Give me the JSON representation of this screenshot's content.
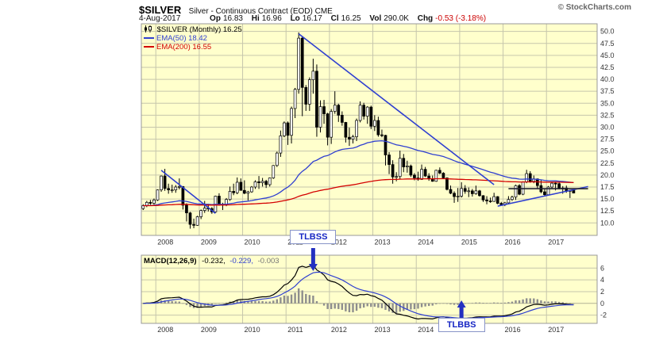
{
  "header": {
    "symbol": "$SILVER",
    "description": "Silver - Continuous Contract (EOD) CME",
    "copyright": "© StockCharts.com",
    "date": "4-Aug-2017",
    "quote": {
      "op_label": "Op",
      "op": "16.83",
      "hi_label": "Hi",
      "hi": "16.96",
      "lo_label": "Lo",
      "lo": "16.17",
      "cl_label": "Cl",
      "cl": "16.25",
      "vol_label": "Vol",
      "vol": "290.0K",
      "chg_label": "Chg",
      "chg": "-0.53 (-3.18%)"
    }
  },
  "legend": {
    "symbol_line": "$SILVER (Monthly) 16.25",
    "ema50": "EMA(50) 18.42",
    "ema200": "EMA(200) 16.55"
  },
  "macd_legend": {
    "label": "MACD(12,26,9)",
    "macd_value": "-0.232,",
    "signal_value": "-0.229,",
    "hist_value": "-0.003"
  },
  "colors": {
    "chart_bg": "#FFFFCC",
    "grid": "#C6C6AC",
    "axis_text": "#333333",
    "candle": "#000000",
    "candle_up_fill": "#FFFFFF",
    "ema50": "#2F3FD0",
    "ema200": "#D40000",
    "trendline": "#2F3FD0",
    "macd_line": "#000000",
    "macd_signal": "#2F3FD0",
    "histogram": "#8E8E8E",
    "annotation": "#2330C0",
    "negative": "#CC0000"
  },
  "chart_data": {
    "type": "candlestick",
    "symbol": "$SILVER",
    "timeframe": "Monthly",
    "title": "$SILVER Silver - Continuous Contract (EOD) CME",
    "months_start": "2007-09",
    "ohlc": [
      [
        13.0,
        13.9,
        12.7,
        13.6
      ],
      [
        13.6,
        14.6,
        13.3,
        14.3
      ],
      [
        14.3,
        14.8,
        13.8,
        14.1
      ],
      [
        14.1,
        15.1,
        13.8,
        14.8
      ],
      [
        14.8,
        17.0,
        14.6,
        16.9
      ],
      [
        16.9,
        19.9,
        16.5,
        19.8
      ],
      [
        19.8,
        21.3,
        16.7,
        17.2
      ],
      [
        17.2,
        18.2,
        16.1,
        16.9
      ],
      [
        16.9,
        18.0,
        16.3,
        16.9
      ],
      [
        16.9,
        17.9,
        16.3,
        17.5
      ],
      [
        17.5,
        19.3,
        17.0,
        17.6
      ],
      [
        17.6,
        17.7,
        12.8,
        13.7
      ],
      [
        13.7,
        14.1,
        10.3,
        12.1
      ],
      [
        12.1,
        12.3,
        8.8,
        9.7
      ],
      [
        9.7,
        10.9,
        8.9,
        9.5
      ],
      [
        9.5,
        11.5,
        9.4,
        11.3
      ],
      [
        11.3,
        12.8,
        10.8,
        12.6
      ],
      [
        12.6,
        14.6,
        12.1,
        13.1
      ],
      [
        13.1,
        14.0,
        12.4,
        13.0
      ],
      [
        13.0,
        13.3,
        11.9,
        12.3
      ],
      [
        12.3,
        15.7,
        12.2,
        15.6
      ],
      [
        15.6,
        16.2,
        13.6,
        13.9
      ],
      [
        13.9,
        14.2,
        12.7,
        13.9
      ],
      [
        13.9,
        15.2,
        13.5,
        14.9
      ],
      [
        14.9,
        17.6,
        14.6,
        16.6
      ],
      [
        16.6,
        18.2,
        15.8,
        16.3
      ],
      [
        16.3,
        19.5,
        16.0,
        18.5
      ],
      [
        18.5,
        19.3,
        16.8,
        16.8
      ],
      [
        16.8,
        18.9,
        16.0,
        16.2
      ],
      [
        16.2,
        16.7,
        14.7,
        16.5
      ],
      [
        16.5,
        17.7,
        16.3,
        17.5
      ],
      [
        17.5,
        18.9,
        17.1,
        18.6
      ],
      [
        18.6,
        19.8,
        17.1,
        18.4
      ],
      [
        18.4,
        19.4,
        17.6,
        18.7
      ],
      [
        18.7,
        19.0,
        17.3,
        18.0
      ],
      [
        18.0,
        19.5,
        17.6,
        19.4
      ],
      [
        19.4,
        22.1,
        19.2,
        22.0
      ],
      [
        22.0,
        24.9,
        21.7,
        24.6
      ],
      [
        24.6,
        29.3,
        23.8,
        28.2
      ],
      [
        28.2,
        31.2,
        27.9,
        30.9
      ],
      [
        30.9,
        31.2,
        26.3,
        28.3
      ],
      [
        28.3,
        34.3,
        26.6,
        33.9
      ],
      [
        33.9,
        38.2,
        31.9,
        37.9
      ],
      [
        37.9,
        49.8,
        37.0,
        48.6
      ],
      [
        48.6,
        49.0,
        32.3,
        38.3
      ],
      [
        38.3,
        38.8,
        33.4,
        34.8
      ],
      [
        34.8,
        40.4,
        33.4,
        39.9
      ],
      [
        39.9,
        44.3,
        37.0,
        41.7
      ],
      [
        41.7,
        43.1,
        28.0,
        30.0
      ],
      [
        30.0,
        35.6,
        28.9,
        34.3
      ],
      [
        34.3,
        35.7,
        30.7,
        32.8
      ],
      [
        32.8,
        33.0,
        26.2,
        27.9
      ],
      [
        27.9,
        33.8,
        26.5,
        33.3
      ],
      [
        33.3,
        37.5,
        32.8,
        34.6
      ],
      [
        34.6,
        34.9,
        31.1,
        32.5
      ],
      [
        32.5,
        33.3,
        30.3,
        31.0
      ],
      [
        31.0,
        31.1,
        26.8,
        27.9
      ],
      [
        27.9,
        29.9,
        26.1,
        27.5
      ],
      [
        27.5,
        28.4,
        26.6,
        28.0
      ],
      [
        28.0,
        31.8,
        27.1,
        31.4
      ],
      [
        31.4,
        35.4,
        31.0,
        34.6
      ],
      [
        34.6,
        35.1,
        31.6,
        32.3
      ],
      [
        32.3,
        34.4,
        30.7,
        34.2
      ],
      [
        34.2,
        34.5,
        29.6,
        30.2
      ],
      [
        30.2,
        32.5,
        29.2,
        31.4
      ],
      [
        31.4,
        32.2,
        28.0,
        28.4
      ],
      [
        28.4,
        29.5,
        27.9,
        28.3
      ],
      [
        28.3,
        28.4,
        22.0,
        24.2
      ],
      [
        24.2,
        24.8,
        20.2,
        22.2
      ],
      [
        22.2,
        23.1,
        18.2,
        19.6
      ],
      [
        19.6,
        20.6,
        18.7,
        19.7
      ],
      [
        19.7,
        25.1,
        19.2,
        23.5
      ],
      [
        23.5,
        24.4,
        20.6,
        21.7
      ],
      [
        21.7,
        23.0,
        20.5,
        21.9
      ],
      [
        21.9,
        22.2,
        19.6,
        20.0
      ],
      [
        20.0,
        20.4,
        18.9,
        19.4
      ],
      [
        19.4,
        20.7,
        18.8,
        19.1
      ],
      [
        19.1,
        22.2,
        19.0,
        21.2
      ],
      [
        21.2,
        21.7,
        19.6,
        19.8
      ],
      [
        19.8,
        20.4,
        18.8,
        19.2
      ],
      [
        19.2,
        19.9,
        18.6,
        18.7
      ],
      [
        18.7,
        21.1,
        18.6,
        21.0
      ],
      [
        21.0,
        21.6,
        20.2,
        20.4
      ],
      [
        20.4,
        20.6,
        19.3,
        19.4
      ],
      [
        19.4,
        19.5,
        16.8,
        17.0
      ],
      [
        17.0,
        17.8,
        16.0,
        16.2
      ],
      [
        16.2,
        16.6,
        14.2,
        15.5
      ],
      [
        15.5,
        17.3,
        14.4,
        15.6
      ],
      [
        15.6,
        18.5,
        15.3,
        17.2
      ],
      [
        17.2,
        17.9,
        16.1,
        16.6
      ],
      [
        16.6,
        17.4,
        15.4,
        16.7
      ],
      [
        16.7,
        17.1,
        15.5,
        16.1
      ],
      [
        16.1,
        17.8,
        15.9,
        16.7
      ],
      [
        16.7,
        16.9,
        15.5,
        15.7
      ],
      [
        15.7,
        15.8,
        14.4,
        14.8
      ],
      [
        14.8,
        15.6,
        13.9,
        14.6
      ],
      [
        14.6,
        15.3,
        14.2,
        14.5
      ],
      [
        14.5,
        16.3,
        14.4,
        15.5
      ],
      [
        15.5,
        15.6,
        13.9,
        14.1
      ],
      [
        14.1,
        14.4,
        13.6,
        13.8
      ],
      [
        13.8,
        14.4,
        13.5,
        14.2
      ],
      [
        14.2,
        15.6,
        14.0,
        14.9
      ],
      [
        14.9,
        15.7,
        14.6,
        15.4
      ],
      [
        15.4,
        18.0,
        14.8,
        17.8
      ],
      [
        17.8,
        18.1,
        15.8,
        16.0
      ],
      [
        16.0,
        18.7,
        15.8,
        18.6
      ],
      [
        18.6,
        21.1,
        18.3,
        20.3
      ],
      [
        20.3,
        20.8,
        18.4,
        18.7
      ],
      [
        18.7,
        19.9,
        18.3,
        19.2
      ],
      [
        19.2,
        19.3,
        17.1,
        17.8
      ],
      [
        17.8,
        18.9,
        16.2,
        16.5
      ],
      [
        16.5,
        17.2,
        15.6,
        15.9
      ],
      [
        15.9,
        17.7,
        15.8,
        17.5
      ],
      [
        17.5,
        18.5,
        17.1,
        18.3
      ],
      [
        18.3,
        18.6,
        16.8,
        18.2
      ],
      [
        18.2,
        18.6,
        17.0,
        17.2
      ],
      [
        17.2,
        17.7,
        16.1,
        17.3
      ],
      [
        17.3,
        17.8,
        16.3,
        16.6
      ],
      [
        16.6,
        16.9,
        15.2,
        16.8
      ],
      [
        16.83,
        16.96,
        16.17,
        16.25
      ]
    ],
    "last": {
      "open": 16.83,
      "high": 16.96,
      "low": 16.17,
      "close": 16.25,
      "volume": "290.0K",
      "change": -0.53,
      "change_pct": -3.18
    },
    "price_axis": {
      "min": 10,
      "max": 50,
      "step": 2.5
    },
    "years": [
      "2008",
      "2009",
      "2010",
      "2011",
      "2012",
      "2013",
      "2014",
      "2015",
      "2016",
      "2017"
    ],
    "overlays": [
      {
        "name": "EMA(50)",
        "period": 50,
        "value": 18.42,
        "color": "#2F3FD0"
      },
      {
        "name": "EMA(200)",
        "period": 200,
        "value": 16.55,
        "color": "#D40000"
      }
    ],
    "macd_params": [
      12,
      26,
      9
    ],
    "macd_values": [
      -0.232,
      -0.229,
      -0.003
    ],
    "macd_axis": {
      "min": -2,
      "max": 6,
      "step": 2
    },
    "trendlines": [
      {
        "from": [
          "2008-02",
          21.0
        ],
        "to": [
          "2009-05",
          12.0
        ]
      },
      {
        "from": [
          "2011-04",
          49.5
        ],
        "to": [
          "2015-10",
          18.0
        ]
      },
      {
        "from": [
          "2015-11",
          13.5
        ],
        "to": [
          "2017-12",
          17.6
        ]
      },
      {
        "from": [
          "2016-02",
          17.15
        ],
        "to": [
          "2017-12",
          17.15
        ],
        "color": "#222233"
      }
    ],
    "annotations": [
      {
        "label": "TLBSS",
        "month": "2011-08",
        "dir": "down",
        "panel": "macd"
      },
      {
        "label": "TLBBS",
        "month": "2015-01",
        "dir": "up",
        "panel": "macd"
      }
    ]
  }
}
